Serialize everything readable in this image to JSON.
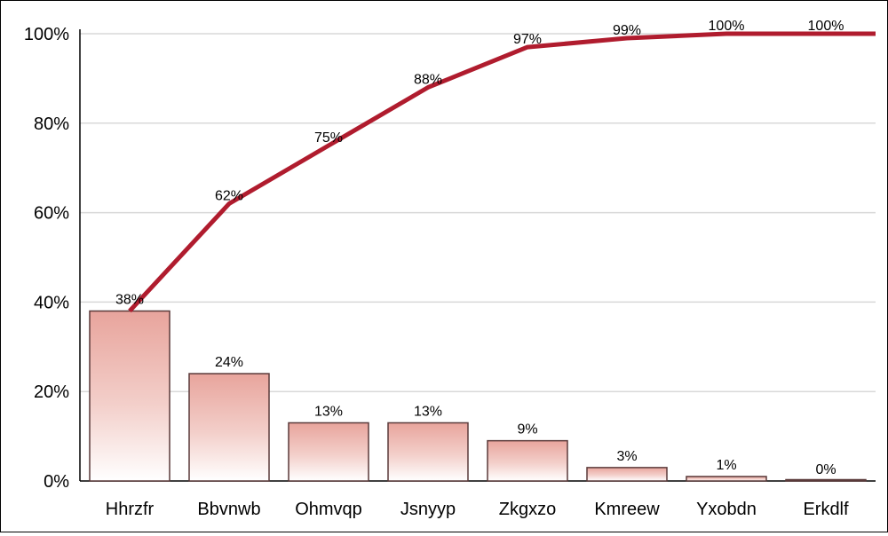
{
  "chart_data": {
    "type": "bar",
    "categories": [
      "Hhrzfr",
      "Bbvnwb",
      "Ohmvqp",
      "Jsnyyp",
      "Zkgxzo",
      "Kmreew",
      "Yxobdn",
      "Erkdlf"
    ],
    "series": [
      {
        "kind": "bar",
        "values": [
          38,
          24,
          13,
          13,
          9,
          3,
          1,
          0
        ],
        "labels": [
          "38%",
          "24%",
          "13%",
          "13%",
          "9%",
          "3%",
          "1%",
          "0%"
        ]
      },
      {
        "kind": "line",
        "values": [
          38,
          62,
          75,
          88,
          97,
          99,
          100,
          100
        ],
        "labels": [
          "",
          "62%",
          "75%",
          "88%",
          "97%",
          "99%",
          "100%",
          "100%"
        ]
      }
    ],
    "y_ticks": [
      "0%",
      "20%",
      "40%",
      "60%",
      "80%",
      "100%"
    ],
    "ylim": [
      0,
      100
    ],
    "grid": true,
    "colors": {
      "line": "#b01c2e",
      "bar_top": "#e8a49c",
      "bar_bottom": "#ffffff",
      "bar_border": "#5a3a3a",
      "grid": "#d9d9d9"
    }
  }
}
